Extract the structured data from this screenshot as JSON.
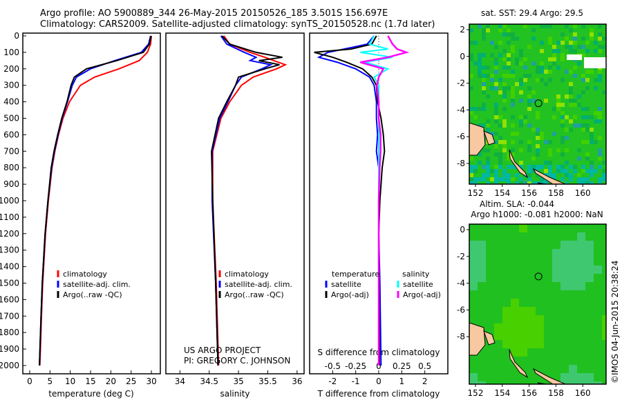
{
  "title_line1": "Argo profile: AO 5900889_344 26-May-2015 20150526_185 3.501S 156.697E",
  "title_line2": "Climatology: CARS2009. Satellite-adjusted climatology: synTS_20150528.nc (1.7d later)",
  "credit": "US ARGO PROJECT",
  "pi": "PI: GREGORY C. JOHNSON",
  "stamp": "©IMOS 04-Jun-2015 20:38:24",
  "colors": {
    "climatology": "#ff0000",
    "satellite": "#0000ff",
    "argo": "#000000",
    "sal_satellite": "#00ffff",
    "sal_argo": "#ff00ff"
  },
  "chart_data": [
    {
      "type": "line",
      "name": "temperature",
      "xlabel": "temperature (deg C)",
      "xlim": [
        -2,
        31
      ],
      "ylim": [
        2080,
        0
      ],
      "xticks": [
        0,
        5,
        10,
        15,
        20,
        25,
        30
      ],
      "yticks": [
        0,
        100,
        200,
        300,
        400,
        500,
        600,
        700,
        800,
        900,
        1000,
        1100,
        1200,
        1300,
        1400,
        1500,
        1600,
        1700,
        1800,
        1900,
        2000
      ],
      "legend": [
        "climatology",
        "satellite-adj. clim.",
        "Argo(..raw -QC)"
      ],
      "depth": [
        0,
        50,
        100,
        150,
        200,
        250,
        300,
        400,
        500,
        600,
        700,
        800,
        1000,
        1200,
        1500,
        1700,
        2000
      ],
      "series": [
        {
          "name": "climatology",
          "values": [
            30,
            29.8,
            29,
            27,
            22,
            16,
            12.5,
            9.8,
            8.2,
            7.1,
            6.2,
            5.5,
            4.6,
            3.9,
            3.2,
            2.9,
            2.5
          ]
        },
        {
          "name": "satellite-adj. clim.",
          "values": [
            29.8,
            29.3,
            27.5,
            21,
            15,
            11.5,
            10.5,
            9.3,
            8,
            7,
            6.1,
            5.4,
            4.5,
            3.8,
            3.1,
            2.8,
            2.4
          ]
        },
        {
          "name": "Argo(..raw -QC)",
          "values": [
            29.9,
            29.5,
            28,
            21.5,
            14,
            11,
            10.2,
            9.2,
            7.9,
            6.9,
            6,
            5.3,
            4.5,
            3.8,
            3.1,
            2.8,
            2.4
          ]
        }
      ]
    },
    {
      "type": "line",
      "name": "salinity",
      "xlabel": "salinity",
      "xlim": [
        33.7,
        36.1
      ],
      "ylim": [
        2080,
        0
      ],
      "xticks": [
        34,
        34.5,
        35,
        35.5,
        36
      ],
      "legend": [
        "climatology",
        "satellite-adj. clim.",
        "Argo(..raw -QC)"
      ],
      "depth": [
        0,
        50,
        100,
        130,
        150,
        175,
        200,
        250,
        300,
        400,
        500,
        700,
        1000,
        1500,
        2000
      ],
      "series": [
        {
          "name": "climatology",
          "values": [
            34.75,
            34.85,
            35.2,
            35.45,
            35.6,
            35.8,
            35.65,
            35.25,
            35.05,
            34.85,
            34.7,
            34.56,
            34.56,
            34.62,
            34.66
          ]
        },
        {
          "name": "satellite-adj. clim.",
          "values": [
            34.7,
            34.8,
            35.1,
            35.3,
            35.2,
            35.55,
            35.4,
            35.05,
            34.95,
            34.82,
            34.68,
            34.55,
            34.55,
            34.61,
            34.65
          ]
        },
        {
          "name": "Argo(..raw -QC)",
          "values": [
            34.72,
            34.85,
            35.3,
            35.75,
            35.35,
            35.7,
            35.45,
            35.0,
            34.95,
            34.8,
            34.66,
            34.54,
            34.56,
            34.61,
            34.65
          ]
        }
      ]
    },
    {
      "type": "line",
      "name": "difference",
      "xlabel": "T difference from climatology",
      "x2label": "S difference from climatology",
      "xlim": [
        -3,
        3
      ],
      "xticks": [
        -2,
        -1,
        0,
        1,
        2
      ],
      "x2ticks": [
        -0.5,
        -0.25,
        0,
        0.25,
        0.5
      ],
      "legend_t_title": "temperature",
      "legend_s_title": "salinity",
      "legend": [
        "satellite",
        "Argo(-adj)",
        "satellite",
        "Argo(-adj)"
      ],
      "depth": [
        0,
        50,
        80,
        100,
        130,
        160,
        200,
        250,
        300,
        400,
        500,
        600,
        700,
        800,
        1000,
        1200,
        1500,
        2000
      ],
      "series": [
        {
          "name": "T satellite",
          "values": [
            -0.2,
            -0.5,
            -1.5,
            -2.2,
            -2.6,
            -1.8,
            -1,
            -0.4,
            -0.2,
            -0.1,
            -0.1,
            -0.05,
            -0.1,
            0,
            0,
            0,
            0.05,
            0.1
          ]
        },
        {
          "name": "T Argo(-adj)",
          "values": [
            -0.1,
            -0.3,
            -1.2,
            -2.8,
            -2.0,
            -1.4,
            -0.7,
            -0.3,
            -0.1,
            -0.05,
            0.1,
            0.2,
            0.25,
            0.15,
            0.05,
            0,
            0.02,
            0.03
          ]
        },
        {
          "name": "S satellite",
          "values": [
            -0.05,
            -0.1,
            0.1,
            -0.2,
            0.15,
            -0.15,
            0.1,
            -0.05,
            0,
            0,
            0,
            0,
            0,
            0,
            0,
            0,
            0,
            0
          ]
        },
        {
          "name": "S Argo(-adj)",
          "values": [
            0.1,
            0.15,
            0.2,
            0.3,
            0.1,
            -0.2,
            0.05,
            0,
            -0.02,
            0,
            0,
            0.02,
            0.02,
            0.01,
            0,
            0,
            0,
            0
          ]
        }
      ]
    },
    {
      "type": "heatmap",
      "name": "sst-map",
      "title": "sat. SST: 29.4 Argo: 29.5",
      "xticks": [
        152,
        154,
        156,
        158,
        160
      ],
      "yticks": [
        2,
        0,
        -2,
        -4,
        -6,
        -8
      ],
      "float_lon": 156.7,
      "float_lat": -3.5
    },
    {
      "type": "heatmap",
      "name": "sla-map",
      "title1": "Altim. SLA: -0.044",
      "title2": "Argo h1000: -0.081 h2000: NaN",
      "xticks": [
        152,
        154,
        156,
        158,
        160
      ],
      "yticks": [
        0,
        -2,
        -4,
        -6,
        -8
      ],
      "float_lon": 156.7,
      "float_lat": -3.5
    }
  ]
}
